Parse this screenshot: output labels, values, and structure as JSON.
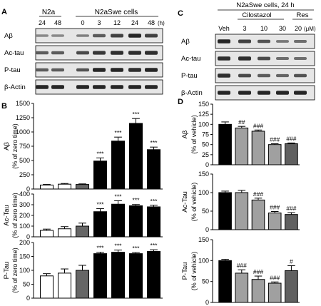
{
  "panels": {
    "A": {
      "letter": "A",
      "groups": [
        {
          "label": "N2a",
          "lanes": [
            "24",
            "48"
          ]
        },
        {
          "label": "N2aSwe cells",
          "lanes": [
            "0",
            "3",
            "12",
            "24",
            "48"
          ],
          "unit": "(h)"
        }
      ],
      "blots": [
        "Aβ",
        "Ac-tau",
        "P-tau",
        "β-Actin"
      ]
    },
    "C": {
      "letter": "C",
      "title": "N2aSwe cells, 24 h",
      "drug_label": "Cilostazol",
      "res_label": "Res",
      "lanes": [
        "Veh",
        "3",
        "10",
        "30",
        "20"
      ],
      "unit": "(μM)",
      "blots": [
        "Aβ",
        "Ac-tau",
        "P-tau",
        "β-Actin"
      ]
    }
  },
  "chart_data": [
    {
      "panel": "B",
      "letter": "B",
      "type": "bar",
      "ylabel_main": "Aβ",
      "ylabel_sub": "(% of zero time)",
      "ylim": [
        0,
        1500
      ],
      "yticks": [
        "0",
        "250",
        "500",
        "750",
        "1000",
        "1250",
        "1500"
      ],
      "values": [
        70,
        85,
        80,
        490,
        840,
        1150,
        690
      ],
      "errors": [
        10,
        12,
        10,
        55,
        70,
        85,
        45
      ],
      "fills": [
        "#ffffff",
        "#ffffff",
        "#666666",
        "#000000",
        "#000000",
        "#000000",
        "#000000"
      ],
      "annotations": [
        "",
        "",
        "",
        "***",
        "***",
        "***",
        "***"
      ]
    },
    {
      "panel": "B",
      "type": "bar",
      "ylabel_main": "Ac-Tau",
      "ylabel_sub": "(% of zero time)",
      "ylim": [
        0,
        400
      ],
      "yticks": [
        "0",
        "100",
        "200",
        "300",
        "400"
      ],
      "values": [
        60,
        75,
        100,
        235,
        305,
        290,
        280
      ],
      "errors": [
        12,
        20,
        28,
        28,
        32,
        12,
        15
      ],
      "fills": [
        "#ffffff",
        "#ffffff",
        "#666666",
        "#000000",
        "#000000",
        "#000000",
        "#000000"
      ],
      "annotations": [
        "",
        "",
        "",
        "***",
        "***",
        "***",
        "***"
      ]
    },
    {
      "panel": "B",
      "type": "bar",
      "ylabel_main": "P-Tau",
      "ylabel_sub": "(% of zero time)",
      "ylim": [
        0,
        200
      ],
      "yticks": [
        "0",
        "50",
        "100",
        "150",
        "200"
      ],
      "values": [
        80,
        90,
        100,
        160,
        165,
        160,
        168
      ],
      "errors": [
        8,
        15,
        18,
        5,
        8,
        4,
        6
      ],
      "fills": [
        "#ffffff",
        "#ffffff",
        "#666666",
        "#000000",
        "#000000",
        "#000000",
        "#000000"
      ],
      "annotations": [
        "",
        "",
        "",
        "***",
        "***",
        "***",
        "***"
      ]
    },
    {
      "panel": "D",
      "letter": "D",
      "type": "bar",
      "ylabel_main": "Aβ",
      "ylabel_sub": "(% of vehicle)",
      "ylim": [
        0,
        150
      ],
      "yticks": [
        "0",
        "25",
        "50",
        "75",
        "100",
        "125",
        "150"
      ],
      "values": [
        100,
        91,
        83,
        50,
        52
      ],
      "errors": [
        6,
        4,
        3,
        2,
        2
      ],
      "fills": [
        "#000000",
        "#a0a0a0",
        "#a0a0a0",
        "#a0a0a0",
        "#606060"
      ],
      "annotations": [
        "",
        "##",
        "###",
        "###",
        "###"
      ]
    },
    {
      "panel": "D",
      "type": "bar",
      "ylabel_main": "Ac-Tau",
      "ylabel_sub": "(% of vehicle)",
      "ylim": [
        0,
        150
      ],
      "yticks": [
        "0",
        "50",
        "100",
        "150"
      ],
      "values": [
        100,
        100,
        80,
        45,
        41
      ],
      "errors": [
        4,
        6,
        5,
        4,
        5
      ],
      "fills": [
        "#000000",
        "#a0a0a0",
        "#a0a0a0",
        "#a0a0a0",
        "#606060"
      ],
      "annotations": [
        "",
        "",
        "###",
        "###",
        "###"
      ]
    },
    {
      "panel": "D",
      "type": "bar",
      "ylabel_main": "P-Tau",
      "ylabel_sub": "(% of vehicle)",
      "ylim": [
        0,
        150
      ],
      "yticks": [
        "0",
        "50",
        "100",
        "150"
      ],
      "values": [
        100,
        70,
        55,
        46,
        76
      ],
      "errors": [
        3,
        8,
        8,
        3,
        12
      ],
      "fills": [
        "#000000",
        "#a0a0a0",
        "#a0a0a0",
        "#a0a0a0",
        "#606060"
      ],
      "annotations": [
        "",
        "###",
        "###",
        "###",
        "#"
      ]
    }
  ]
}
